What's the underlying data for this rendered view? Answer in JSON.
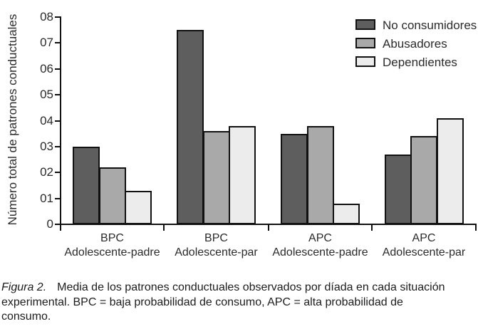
{
  "chart_data": {
    "type": "bar",
    "title": "",
    "ylabel": "Número total de patrones conductuales",
    "xlabel": "",
    "ylim": [
      0,
      8
    ],
    "yticks": [
      "0",
      "01",
      "02",
      "03",
      "04",
      "05",
      "06",
      "07",
      "08"
    ],
    "grid": false,
    "legend_position": "top-right",
    "categories": [
      {
        "line1": "BPC",
        "line2": "Adolescente-padre"
      },
      {
        "line1": "BPC",
        "line2": "Adolescente-par"
      },
      {
        "line1": "APC",
        "line2": "Adolescente-padre"
      },
      {
        "line1": "APC",
        "line2": "Adolescente-par"
      }
    ],
    "series": [
      {
        "name": "No consumidores",
        "color": "#5e5e5e",
        "values": [
          3.0,
          7.5,
          3.5,
          2.7
        ]
      },
      {
        "name": "Abusadores",
        "color": "#a9a9a9",
        "values": [
          2.2,
          3.6,
          3.8,
          3.4
        ]
      },
      {
        "name": "Dependientes",
        "color": "#ececec",
        "values": [
          1.3,
          3.8,
          0.8,
          4.1
        ]
      }
    ],
    "axis_color": "#111111",
    "background_color": "#ffffff"
  },
  "caption": {
    "label": "Figura 2.",
    "line1": "Media de los patrones conductuales observados por díada en cada situación",
    "line2": "experimental. BPC = baja probabilidad de consumo, APC = alta probabilidad de",
    "line3": "consumo."
  }
}
